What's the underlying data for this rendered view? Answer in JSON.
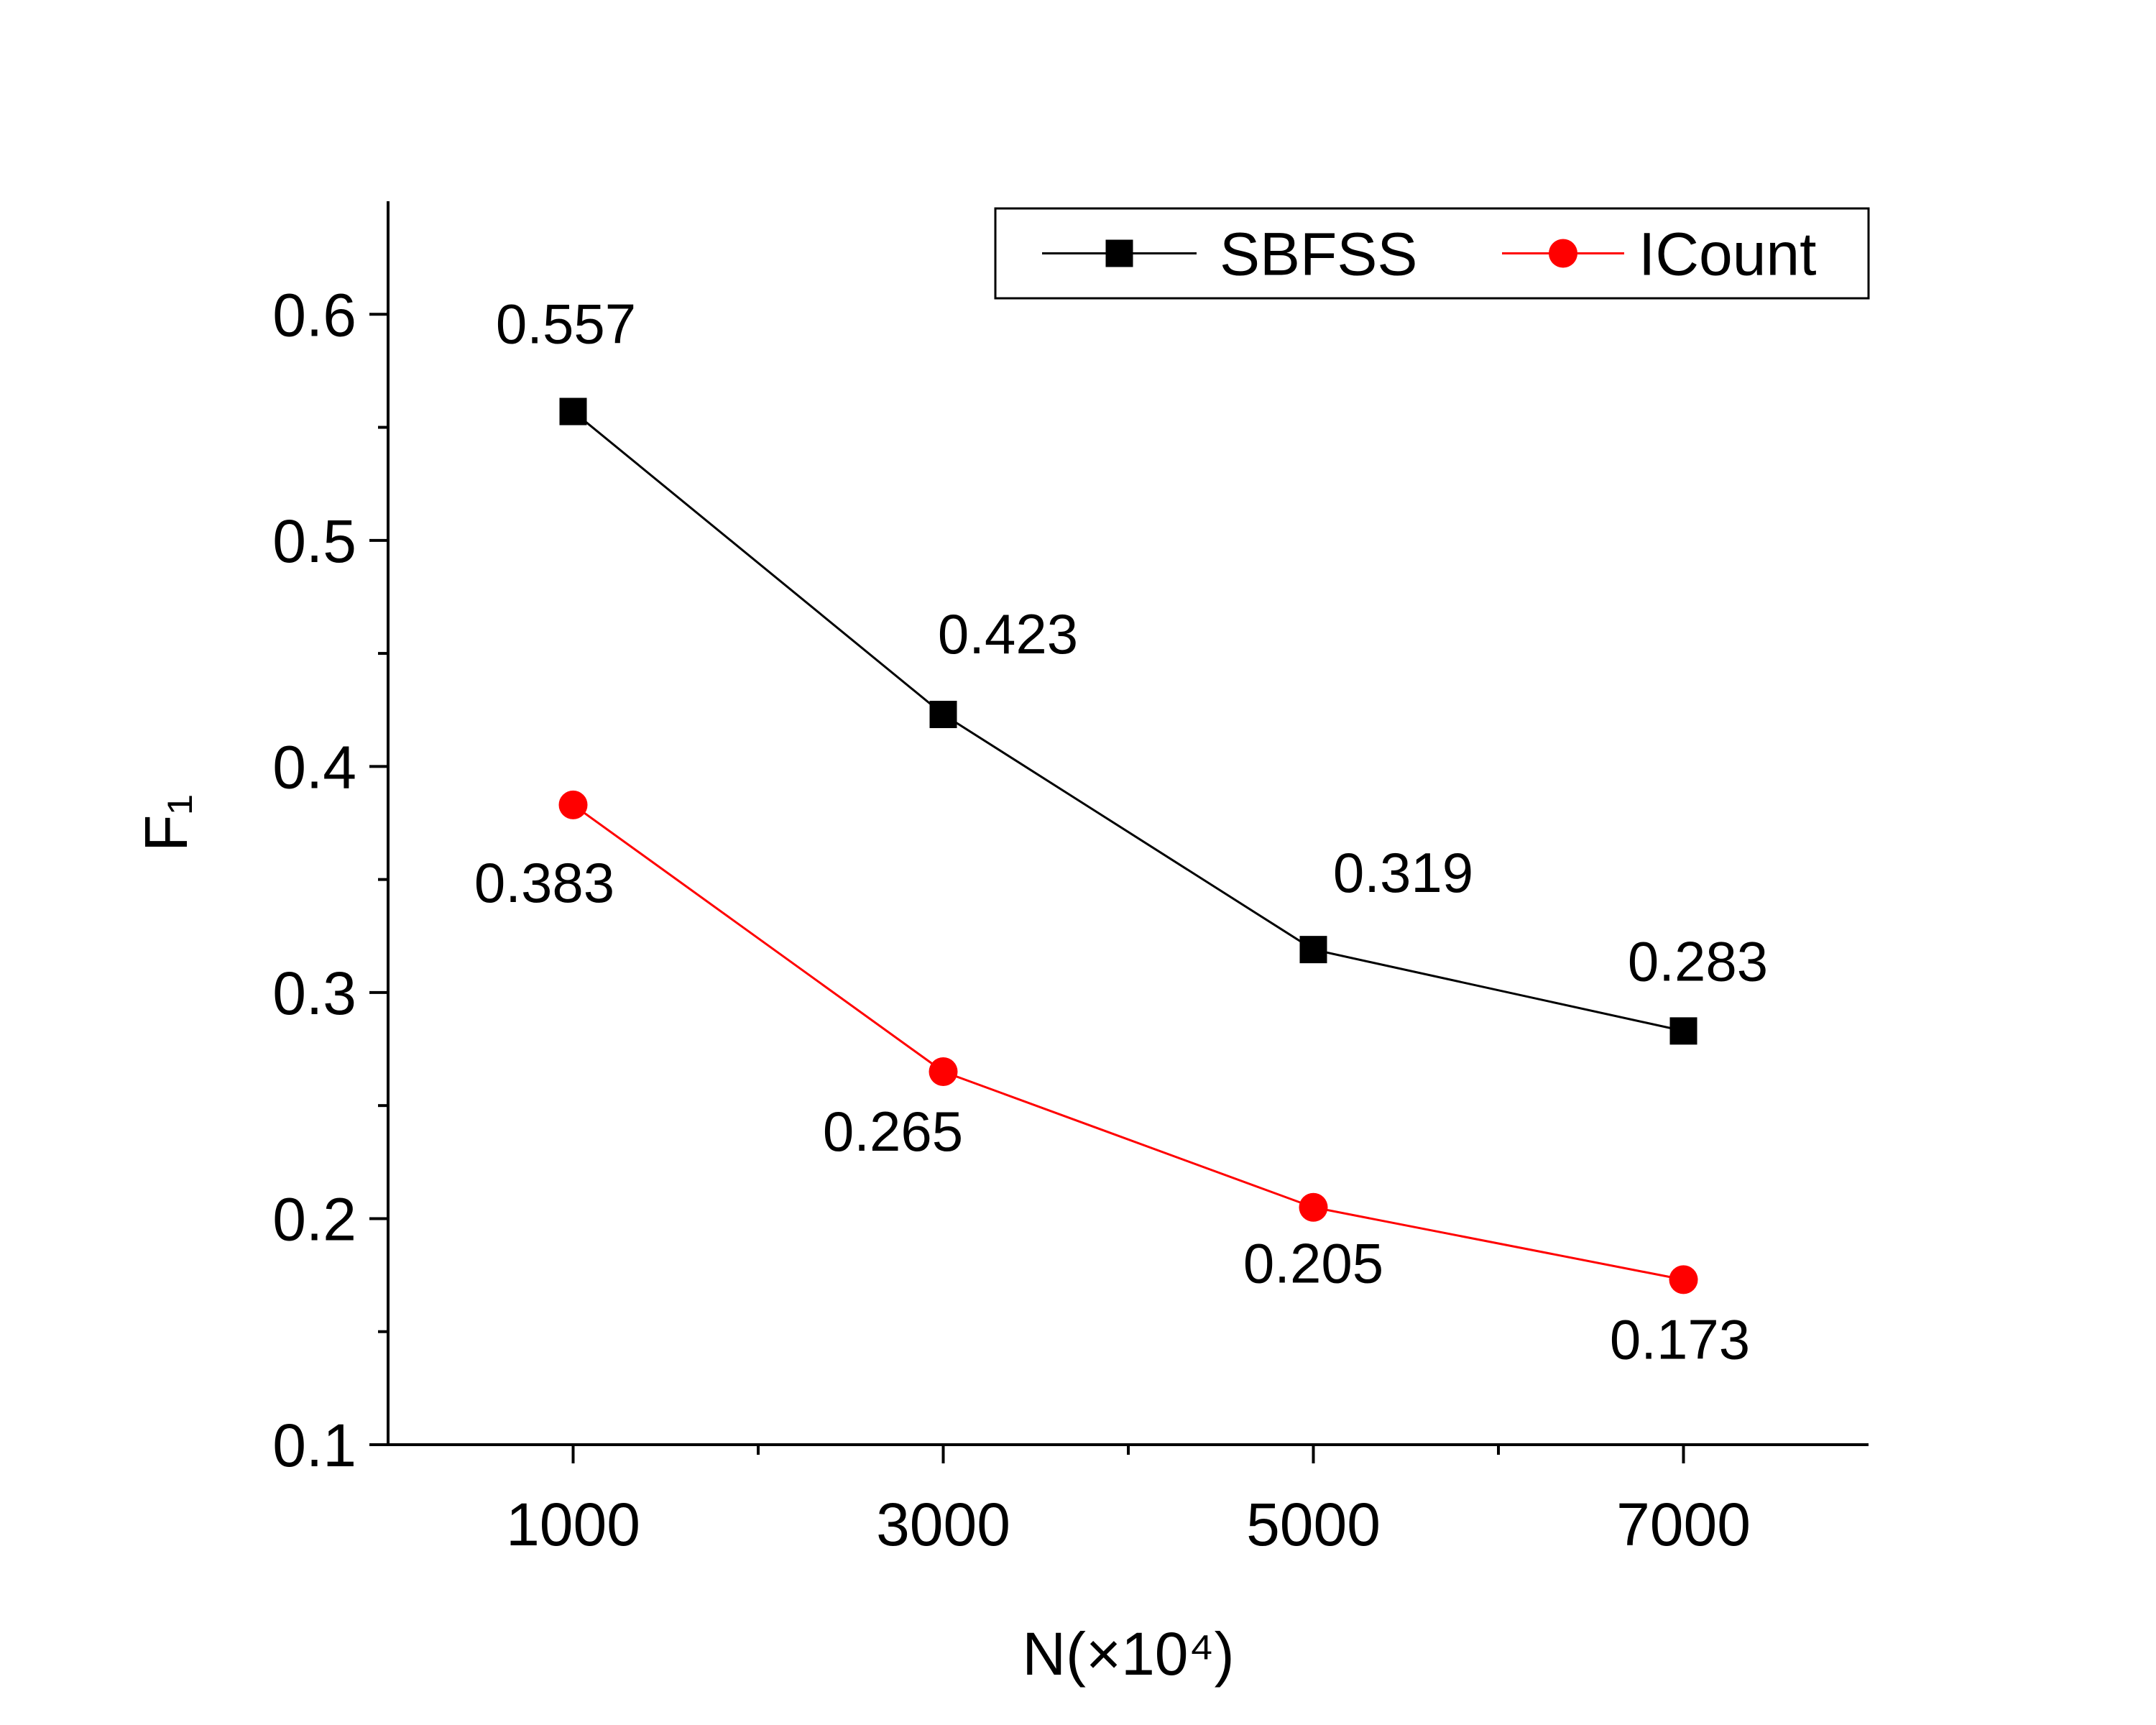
{
  "chart_data": {
    "type": "line",
    "title": "",
    "xlabel": "N(×10⁴)",
    "ylabel": "F₁",
    "x": [
      1000,
      3000,
      5000,
      7000
    ],
    "xlim": [
      0,
      8000
    ],
    "x_ticks": [
      "1000",
      "3000",
      "5000",
      "7000"
    ],
    "ylim": [
      0.1,
      0.65
    ],
    "y_ticks": [
      "0.1",
      "0.2",
      "0.3",
      "0.4",
      "0.5",
      "0.6"
    ],
    "grid": false,
    "legend_position": "top-right",
    "series": [
      {
        "name": "SBFSS",
        "color": "#000000",
        "marker": "square",
        "values": [
          0.557,
          0.423,
          0.319,
          0.283
        ],
        "labels": [
          "0.557",
          "0.423",
          "0.319",
          "0.283"
        ]
      },
      {
        "name": "ICount",
        "color": "#ff0000",
        "marker": "circle",
        "values": [
          0.383,
          0.265,
          0.205,
          0.173
        ],
        "labels": [
          "0.383",
          "0.265",
          "0.205",
          "0.173"
        ]
      }
    ]
  }
}
